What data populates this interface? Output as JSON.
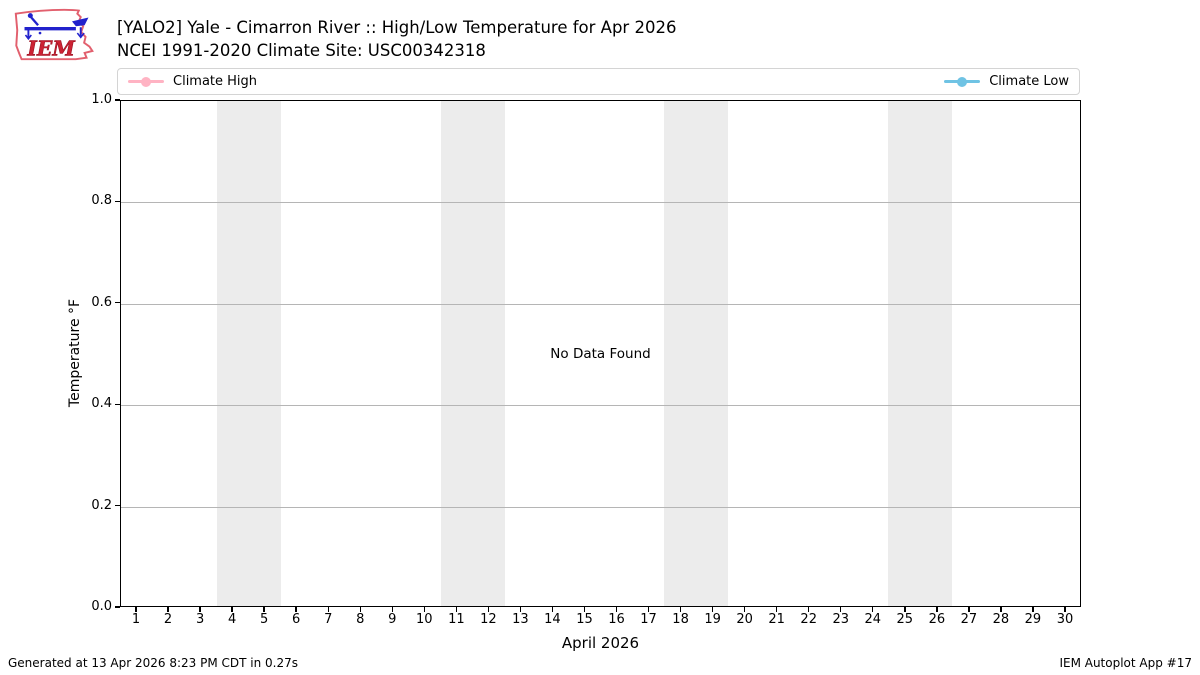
{
  "header": {
    "logo_text": "IEM",
    "title": "[YALO2] Yale - Cimarron River :: High/Low Temperature for Apr 2026",
    "subtitle": "NCEI 1991-2020 Climate Site: USC00342318"
  },
  "legend": {
    "items": [
      {
        "name": "climate-high",
        "label": "Climate High",
        "color": "#ffb3c3"
      },
      {
        "name": "climate-low",
        "label": "Climate Low",
        "color": "#6fc3e4"
      }
    ]
  },
  "plot": {
    "no_data_text": "No Data Found",
    "weekend_band_color": "#ececec",
    "grid_color": "#b5b5b5"
  },
  "axes": {
    "y_label": "Temperature °F",
    "x_label": "April 2026"
  },
  "footer": {
    "generated": "Generated at 13 Apr 2026 8:23 PM CDT in 0.27s",
    "credit": "IEM Autoplot App #17"
  },
  "chart_data": {
    "type": "line",
    "title": "[YALO2] Yale - Cimarron River :: High/Low Temperature for Apr 2026",
    "subtitle": "NCEI 1991-2020 Climate Site: USC00342318",
    "xlabel": "April 2026",
    "ylabel": "Temperature °F",
    "no_data": true,
    "annotations": [
      "No Data Found"
    ],
    "xlim": [
      0.5,
      30.5
    ],
    "ylim": [
      0.0,
      1.0
    ],
    "x_ticks_days": [
      1,
      2,
      3,
      4,
      5,
      6,
      7,
      8,
      9,
      10,
      11,
      12,
      13,
      14,
      15,
      16,
      17,
      18,
      19,
      20,
      21,
      22,
      23,
      24,
      25,
      26,
      27,
      28,
      29,
      30
    ],
    "y_tick_values": [
      0.0,
      0.2,
      0.4,
      0.6,
      0.8,
      1.0
    ],
    "y_tick_labels": [
      "0.0",
      "0.2",
      "0.4",
      "0.6",
      "0.8",
      "1.0"
    ],
    "grid": "horizontal",
    "legend_position": "top, full-width, high left / low right",
    "weekend_bands_days": [
      [
        4,
        5
      ],
      [
        11,
        12
      ],
      [
        18,
        19
      ],
      [
        25,
        26
      ]
    ],
    "series": [
      {
        "name": "Climate High",
        "color": "#ffb3c3",
        "marker": "circle",
        "values": []
      },
      {
        "name": "Climate Low",
        "color": "#6fc3e4",
        "marker": "circle",
        "values": []
      }
    ]
  }
}
